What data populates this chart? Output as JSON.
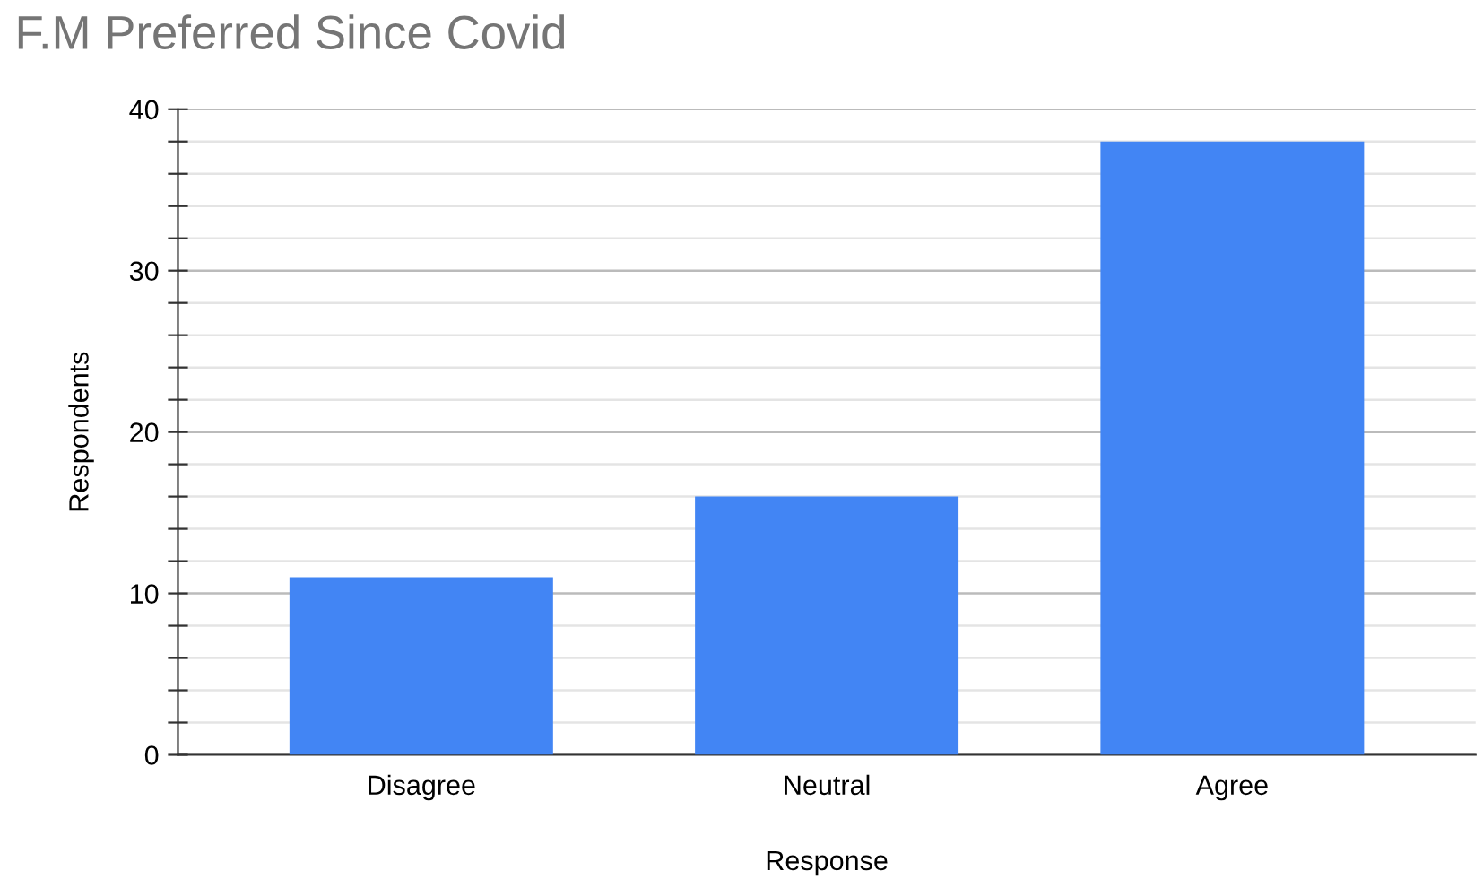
{
  "chart_data": {
    "type": "bar",
    "title": "F.M Preferred Since Covid",
    "xlabel": "Response",
    "ylabel": "Respondents",
    "categories": [
      "Disagree",
      "Neutral",
      "Agree"
    ],
    "values": [
      11,
      16,
      38
    ],
    "color": "#4285f4",
    "ylim": [
      0,
      40
    ],
    "yticks": [
      0,
      {
        "value": 2,
        "label": null
      },
      {
        "value": 4,
        "label": null
      },
      {
        "value": 6,
        "label": null
      },
      {
        "value": 8,
        "label": null
      },
      10,
      {
        "value": 12,
        "label": null
      },
      {
        "value": 14,
        "label": null
      },
      {
        "value": 16,
        "label": null
      },
      {
        "value": 18,
        "label": null
      },
      20,
      {
        "value": 22,
        "label": null
      },
      {
        "value": 24,
        "label": null
      },
      {
        "value": 26,
        "label": null
      },
      {
        "value": 28,
        "label": null
      },
      30,
      {
        "value": 32,
        "label": null
      },
      {
        "value": 34,
        "label": null
      },
      {
        "value": 36,
        "label": null
      },
      {
        "value": 38,
        "label": null
      },
      40
    ],
    "grid": "y",
    "legend": false
  }
}
